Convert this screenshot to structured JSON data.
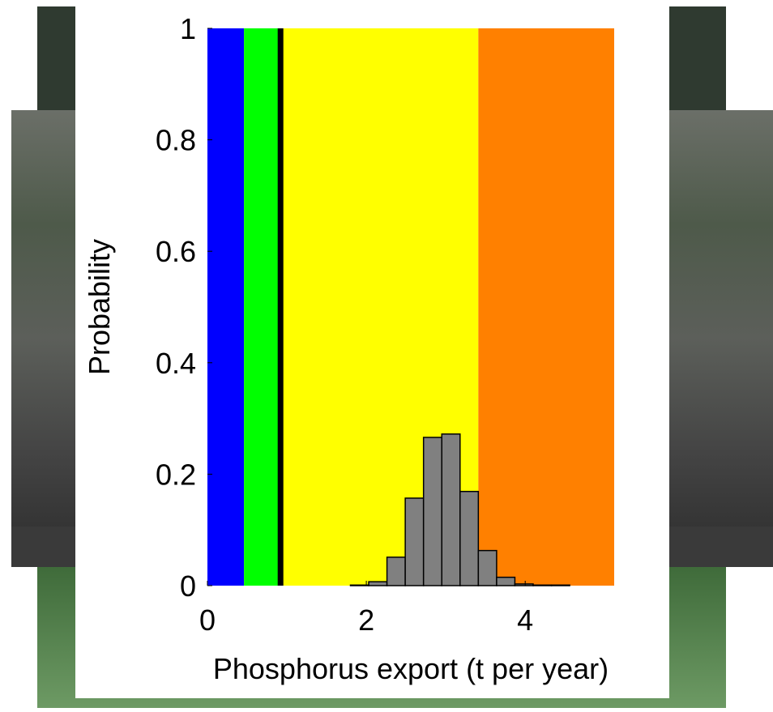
{
  "chart_data": {
    "type": "histogram",
    "x_label": "Phosphorus export (t per year)",
    "y_label": "Probability",
    "bins": [
      1.8,
      2.03,
      2.26,
      2.49,
      2.72,
      2.95,
      3.18,
      3.41,
      3.64,
      3.87,
      4.1,
      4.33,
      4.56
    ],
    "values": [
      0.001,
      0.007,
      0.051,
      0.157,
      0.266,
      0.272,
      0.169,
      0.063,
      0.015,
      0.003,
      0.001,
      0.001
    ],
    "color": "#808080",
    "bands": [
      {
        "from": 0,
        "to": 0.46,
        "color": "#0000ff"
      },
      {
        "from": 0.46,
        "to": 0.92,
        "color": "#00ff00"
      },
      {
        "from": 0.92,
        "to": 3.41,
        "color": "#ffff00"
      },
      {
        "from": 3.41,
        "to": 5.12,
        "color": "#ff8000"
      }
    ],
    "threshold": {
      "value": 0.92,
      "color": "#000000"
    },
    "xlim": [
      0,
      5.12
    ],
    "xticks": [
      0,
      2,
      4
    ],
    "ylim": [
      0,
      1
    ],
    "yticks": [
      0,
      0.2,
      0.4,
      0.6,
      0.8,
      1
    ]
  }
}
